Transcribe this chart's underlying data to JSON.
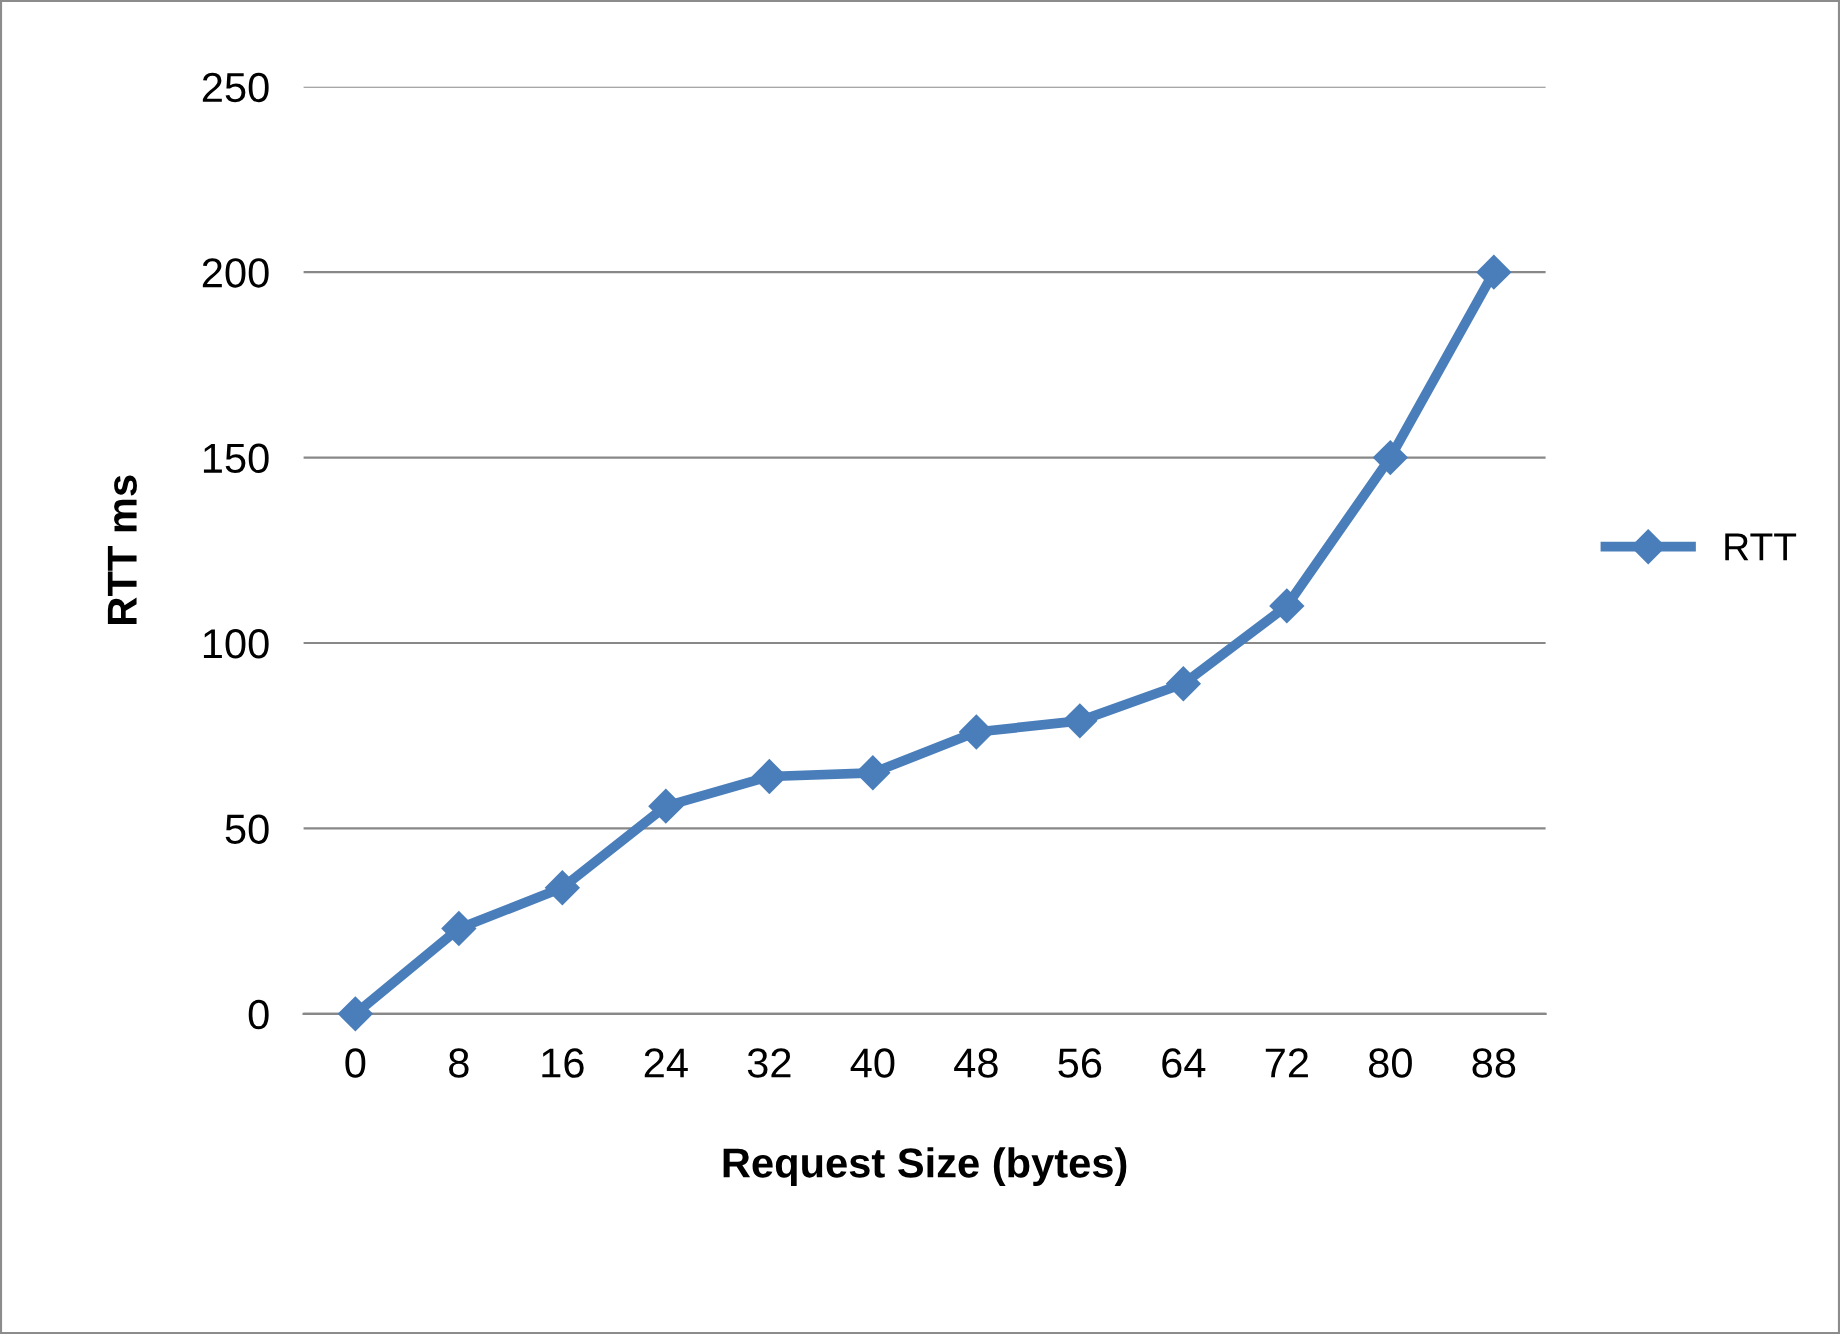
{
  "chart_data": {
    "type": "line",
    "xlabel": "Request Size (bytes)",
    "ylabel": "RTT ms",
    "categories": [
      "0",
      "8",
      "16",
      "24",
      "32",
      "40",
      "48",
      "56",
      "64",
      "72",
      "80",
      "88"
    ],
    "series": [
      {
        "name": "RTT",
        "color": "#4a7ebb",
        "values": [
          0,
          23,
          34,
          56,
          64,
          65,
          76,
          79,
          89,
          110,
          150,
          200
        ]
      }
    ],
    "ylim": [
      0,
      250
    ],
    "yticks": [
      0,
      50,
      100,
      150,
      200,
      250
    ],
    "grid": "y",
    "legend": "right",
    "marker": "diamond",
    "line_style": "solid"
  }
}
